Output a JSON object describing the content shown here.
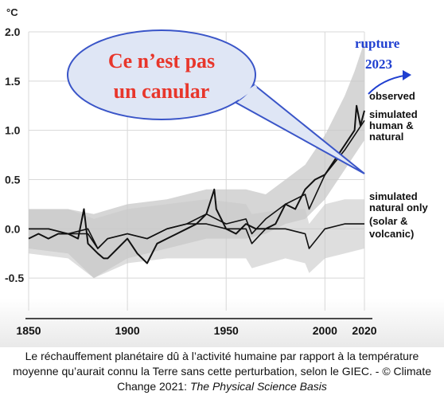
{
  "chart_data": {
    "type": "line",
    "unit_label": "°C",
    "x_ticks": [
      "1850",
      "1900",
      "1950",
      "2000",
      "2020"
    ],
    "x_tick_values": [
      1850,
      1900,
      1950,
      2000,
      2020
    ],
    "xlim": [
      1850,
      2020
    ],
    "y_ticks": [
      "2.0",
      "1.5",
      "1.0",
      "0.5",
      "0.0",
      "-0.5"
    ],
    "y_tick_values": [
      2.0,
      1.5,
      1.0,
      0.5,
      0.0,
      -0.5
    ],
    "ylim": [
      -0.75,
      2.0
    ],
    "grid": true,
    "series": [
      {
        "name": "observed",
        "x": [
          1850,
          1855,
          1860,
          1865,
          1870,
          1875,
          1878,
          1880,
          1885,
          1888,
          1890,
          1895,
          1900,
          1905,
          1910,
          1915,
          1920,
          1925,
          1930,
          1935,
          1940,
          1944,
          1945,
          1950,
          1955,
          1960,
          1965,
          1970,
          1975,
          1980,
          1985,
          1990,
          1995,
          2000,
          2005,
          2010,
          2015,
          2016,
          2018,
          2020
        ],
        "y": [
          -0.1,
          -0.05,
          -0.1,
          -0.05,
          -0.05,
          -0.1,
          0.2,
          -0.15,
          -0.25,
          -0.3,
          -0.3,
          -0.2,
          -0.1,
          -0.25,
          -0.35,
          -0.15,
          -0.1,
          -0.05,
          0.0,
          0.05,
          0.15,
          0.4,
          0.2,
          0.0,
          -0.05,
          0.05,
          0.0,
          0.0,
          0.05,
          0.25,
          0.2,
          0.4,
          0.5,
          0.55,
          0.7,
          0.85,
          1.0,
          1.25,
          1.05,
          1.2
        ]
      },
      {
        "name": "simulated human & natural",
        "x": [
          1850,
          1860,
          1870,
          1880,
          1885,
          1890,
          1900,
          1910,
          1920,
          1930,
          1940,
          1950,
          1960,
          1963,
          1970,
          1980,
          1990,
          1992,
          2000,
          2010,
          2020
        ],
        "y": [
          0.0,
          0.0,
          -0.05,
          -0.05,
          -0.2,
          -0.1,
          -0.05,
          -0.1,
          0.0,
          0.05,
          0.15,
          0.05,
          0.1,
          -0.05,
          0.1,
          0.25,
          0.35,
          0.2,
          0.55,
          0.8,
          1.1
        ]
      },
      {
        "name": "simulated natural only (solar & volcanic)",
        "x": [
          1850,
          1860,
          1870,
          1880,
          1885,
          1890,
          1900,
          1910,
          1920,
          1930,
          1940,
          1950,
          1960,
          1963,
          1970,
          1980,
          1990,
          1992,
          2000,
          2010,
          2020
        ],
        "y": [
          0.0,
          0.0,
          -0.05,
          0.0,
          -0.2,
          -0.1,
          -0.05,
          -0.1,
          0.0,
          0.05,
          0.05,
          0.0,
          0.0,
          -0.15,
          0.0,
          0.0,
          -0.05,
          -0.2,
          0.0,
          0.05,
          0.05
        ]
      }
    ],
    "bands": [
      {
        "series": "simulated human & natural",
        "x": [
          1850,
          1870,
          1883,
          1900,
          1920,
          1940,
          1960,
          1970,
          1980,
          1990,
          1995,
          2000,
          2005,
          2010,
          2015,
          2020
        ],
        "low": [
          -0.2,
          -0.25,
          -0.5,
          -0.3,
          -0.2,
          -0.1,
          -0.1,
          -0.05,
          0.05,
          0.1,
          0.2,
          0.3,
          0.45,
          0.6,
          0.75,
          0.9
        ],
        "high": [
          0.2,
          0.2,
          0.15,
          0.25,
          0.3,
          0.4,
          0.4,
          0.35,
          0.5,
          0.65,
          0.8,
          0.95,
          1.15,
          1.35,
          1.6,
          1.9
        ]
      },
      {
        "series": "simulated natural only (solar & volcanic)",
        "x": [
          1850,
          1870,
          1883,
          1900,
          1920,
          1940,
          1960,
          1963,
          1980,
          1990,
          1992,
          2000,
          2010,
          2020
        ],
        "low": [
          -0.25,
          -0.3,
          -0.5,
          -0.35,
          -0.3,
          -0.3,
          -0.3,
          -0.4,
          -0.3,
          -0.35,
          -0.45,
          -0.3,
          -0.25,
          -0.2
        ],
        "high": [
          0.2,
          0.2,
          0.1,
          0.2,
          0.25,
          0.3,
          0.25,
          0.15,
          0.2,
          0.2,
          0.05,
          0.25,
          0.3,
          0.3
        ]
      }
    ],
    "legend": {
      "placement": "right",
      "observed": [
        "observed"
      ],
      "human": [
        "simulated",
        "human &",
        "natural"
      ],
      "natural": [
        "simulated",
        "natural only",
        "(solar &",
        "volcanic)"
      ]
    }
  },
  "annotations": {
    "callout_lines": [
      "Ce n’est pas",
      "un canular"
    ],
    "rupture_lines": [
      "rupture",
      "2023"
    ]
  },
  "colors": {
    "callout_text": "#e8362b",
    "callout_fill": "#dfe6f5",
    "callout_stroke": "#3a55c8",
    "rupture": "#1f3fd0",
    "band": "#c8c8c8",
    "grid": "#d8d8d8"
  },
  "caption": {
    "text": "Le réchauffement planétaire dû à l’activité humaine par rapport à la température moyenne qu’aurait connu la Terre sans cette perturbation, selon le GIEC. - © Climate Change 2021: ",
    "source": "The Physical Science Basis"
  }
}
